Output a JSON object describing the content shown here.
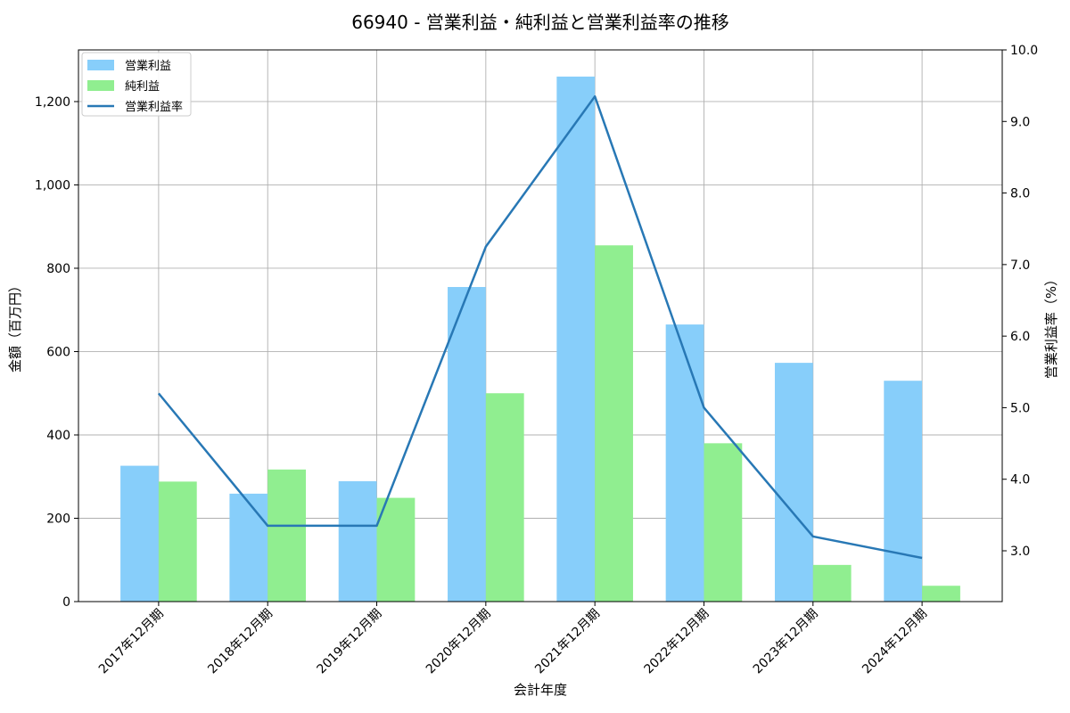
{
  "chart_data": {
    "type": "bar",
    "subtype": "grouped-bar-with-line-on-secondary-axis",
    "title": "66940 - 営業利益・純利益と営業利益率の推移",
    "xlabel": "会計年度",
    "ylabel_left": "金額（百万円）",
    "ylabel_right": "営業利益率（%）",
    "categories": [
      "2017年12月期",
      "2018年12月期",
      "2019年12月期",
      "2020年12月期",
      "2021年12月期",
      "2022年12月期",
      "2023年12月期",
      "2024年12月期"
    ],
    "series": [
      {
        "name": "営業利益",
        "type": "bar",
        "axis": "left",
        "color": "#87CEFA",
        "values": [
          326,
          259,
          289,
          755,
          1260,
          665,
          573,
          530
        ]
      },
      {
        "name": "純利益",
        "type": "bar",
        "axis": "left",
        "color": "#90EE90",
        "values": [
          288,
          317,
          249,
          500,
          855,
          380,
          88,
          38
        ]
      },
      {
        "name": "営業利益率",
        "type": "line",
        "axis": "right",
        "color": "#2878b5",
        "values": [
          5.2,
          3.35,
          3.35,
          7.25,
          9.35,
          5.0,
          3.2,
          2.9
        ]
      }
    ],
    "ylim_left": [
      0,
      1324
    ],
    "yticks_left": [
      0,
      200,
      400,
      600,
      800,
      1000,
      1200
    ],
    "ytick_labels_left": [
      "0",
      "200",
      "400",
      "600",
      "800",
      "1,000",
      "1,200"
    ],
    "ylim_right": [
      2.29,
      10.0
    ],
    "yticks_right": [
      3,
      4,
      5,
      6,
      7,
      8,
      9,
      10
    ],
    "ytick_labels_right": [
      "3.0",
      "4.0",
      "5.0",
      "6.0",
      "7.0",
      "8.0",
      "9.0",
      "10.0"
    ],
    "grid": true,
    "grid_color": "#b0b0b0",
    "legend_position": "upper left",
    "legend_labels": [
      "営業利益",
      "純利益",
      "営業利益率"
    ]
  }
}
